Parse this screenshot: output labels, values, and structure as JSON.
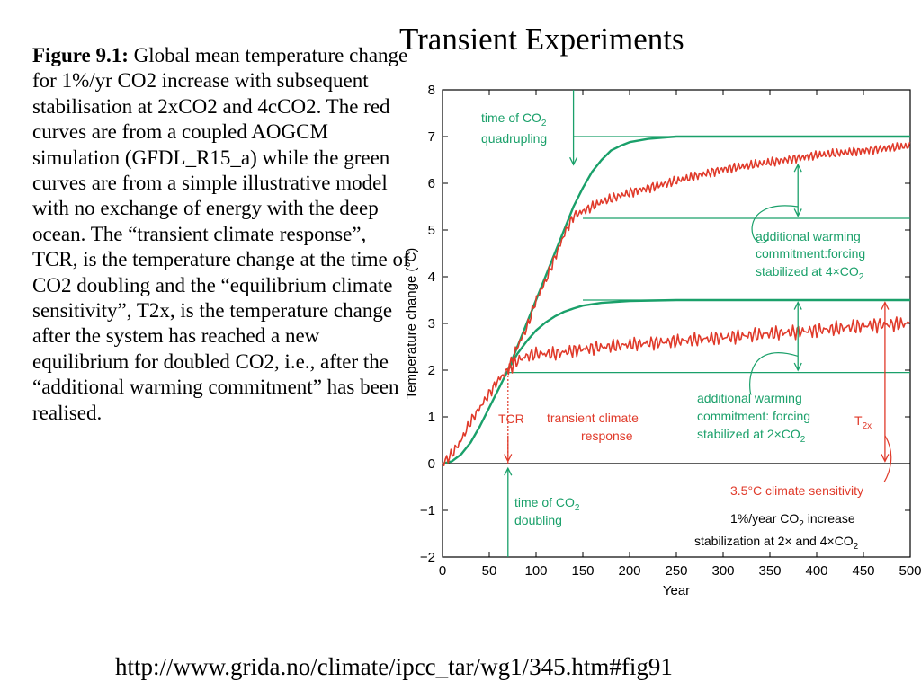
{
  "slide": {
    "title": "Transient Experiments",
    "caption_bold": "Figure 9.1:",
    "caption_text": " Global mean temperature change for 1%/yr CO2 increase with subsequent stabilisation at 2xCO2 and 4cCO2. The red curves are from a coupled AOGCM simulation (GFDL_R15_a) while the green curves are from a simple illustrative model with no exchange of energy with the deep ocean. The “transient climate response”, TCR, is the temperature change at the time of CO2 doubling and the “equilibrium climate sensitivity”, T2x, is the temperature change after the system has reached a new equilibrium for doubled CO2, i.e., after the “additional warming commitment” has been realised.",
    "url": "http://www.grida.no/climate/ipcc_tar/wg1/345.htm#fig91"
  },
  "colors": {
    "green": "#1aa06a",
    "red": "#e03a2a",
    "black": "#000000"
  },
  "chart_data": {
    "type": "line",
    "xlabel": "Year",
    "ylabel": "Temperature change (°C)",
    "xlim": [
      0,
      500
    ],
    "ylim": [
      -2,
      8
    ],
    "xticks": [
      0,
      50,
      100,
      150,
      200,
      250,
      300,
      350,
      400,
      450,
      500
    ],
    "yticks": [
      -2,
      -1,
      0,
      1,
      2,
      3,
      4,
      5,
      6,
      7,
      8
    ],
    "ytick_labels": [
      "−2",
      "−1",
      "0",
      "1",
      "2",
      "3",
      "4",
      "5",
      "6",
      "7",
      "8"
    ],
    "series": [
      {
        "color": "green",
        "x": [
          0,
          10,
          20,
          30,
          40,
          50,
          60,
          70,
          80,
          90,
          100,
          110,
          120,
          130,
          140,
          150,
          160,
          170,
          180,
          190,
          200,
          220,
          250,
          300,
          350,
          400,
          450,
          500
        ],
        "values": [
          0,
          0.05,
          0.2,
          0.45,
          0.8,
          1.2,
          1.6,
          2.0,
          2.5,
          3.0,
          3.5,
          4.0,
          4.5,
          5.0,
          5.5,
          5.9,
          6.25,
          6.5,
          6.7,
          6.8,
          6.88,
          6.95,
          7.0,
          7.0,
          7.0,
          7.0,
          7.0,
          7.0
        ]
      },
      {
        "color": "green",
        "x": [
          70,
          80,
          90,
          100,
          110,
          120,
          130,
          140,
          150,
          170,
          200,
          250,
          300,
          400,
          500
        ],
        "values": [
          2.0,
          2.35,
          2.62,
          2.85,
          3.02,
          3.15,
          3.25,
          3.32,
          3.38,
          3.44,
          3.48,
          3.5,
          3.5,
          3.5,
          3.5
        ]
      },
      {
        "color": "red",
        "x": [
          0,
          10,
          20,
          30,
          40,
          50,
          60,
          70,
          80,
          90,
          100,
          110,
          120,
          130,
          140,
          150,
          170,
          200,
          230,
          260,
          300,
          350,
          400,
          450,
          500
        ],
        "values": [
          0,
          0.2,
          0.5,
          0.9,
          1.2,
          1.5,
          1.8,
          2.0,
          2.5,
          2.9,
          3.5,
          3.9,
          4.4,
          4.9,
          5.3,
          5.4,
          5.6,
          5.8,
          5.95,
          6.1,
          6.3,
          6.45,
          6.6,
          6.7,
          6.8
        ]
      },
      {
        "color": "red",
        "x": [
          70,
          80,
          90,
          100,
          120,
          150,
          200,
          250,
          300,
          350,
          400,
          450,
          500
        ],
        "values": [
          2.0,
          2.2,
          2.3,
          2.35,
          2.35,
          2.45,
          2.55,
          2.62,
          2.7,
          2.78,
          2.85,
          2.95,
          3.0
        ]
      }
    ],
    "reference_lines": [
      {
        "color": "black",
        "y": 0,
        "x": [
          0,
          500
        ]
      },
      {
        "color": "green",
        "y": 7.0,
        "x": [
          140,
          500
        ]
      },
      {
        "color": "green",
        "y": 5.25,
        "x": [
          150,
          500
        ]
      },
      {
        "color": "green",
        "y": 3.5,
        "x": [
          150,
          500
        ]
      },
      {
        "color": "green",
        "y": 1.95,
        "x": [
          70,
          500
        ]
      }
    ],
    "annotations": [
      {
        "text": "time of CO2",
        "sub": "2",
        "line2": "quadrupling",
        "color": "green"
      },
      {
        "text": "additional warming",
        "line2": "commitment:forcing",
        "line3": "stabilized at 4×CO2",
        "color": "green"
      },
      {
        "text": "additional warming",
        "line2": "commitment: forcing",
        "line3": "stabilized at 2×CO2",
        "color": "green"
      },
      {
        "text": "TCR",
        "color": "red"
      },
      {
        "text": "transient climate",
        "line2": "response",
        "color": "red"
      },
      {
        "text": "T2x",
        "color": "red"
      },
      {
        "text": "3.5°C climate sensitivity",
        "color": "red"
      },
      {
        "text": "time of CO2",
        "line2": "doubling",
        "color": "green"
      },
      {
        "text": "1%/year CO2 increase",
        "line2": "stabilization at 2× and 4×CO2",
        "color": "black"
      }
    ]
  }
}
